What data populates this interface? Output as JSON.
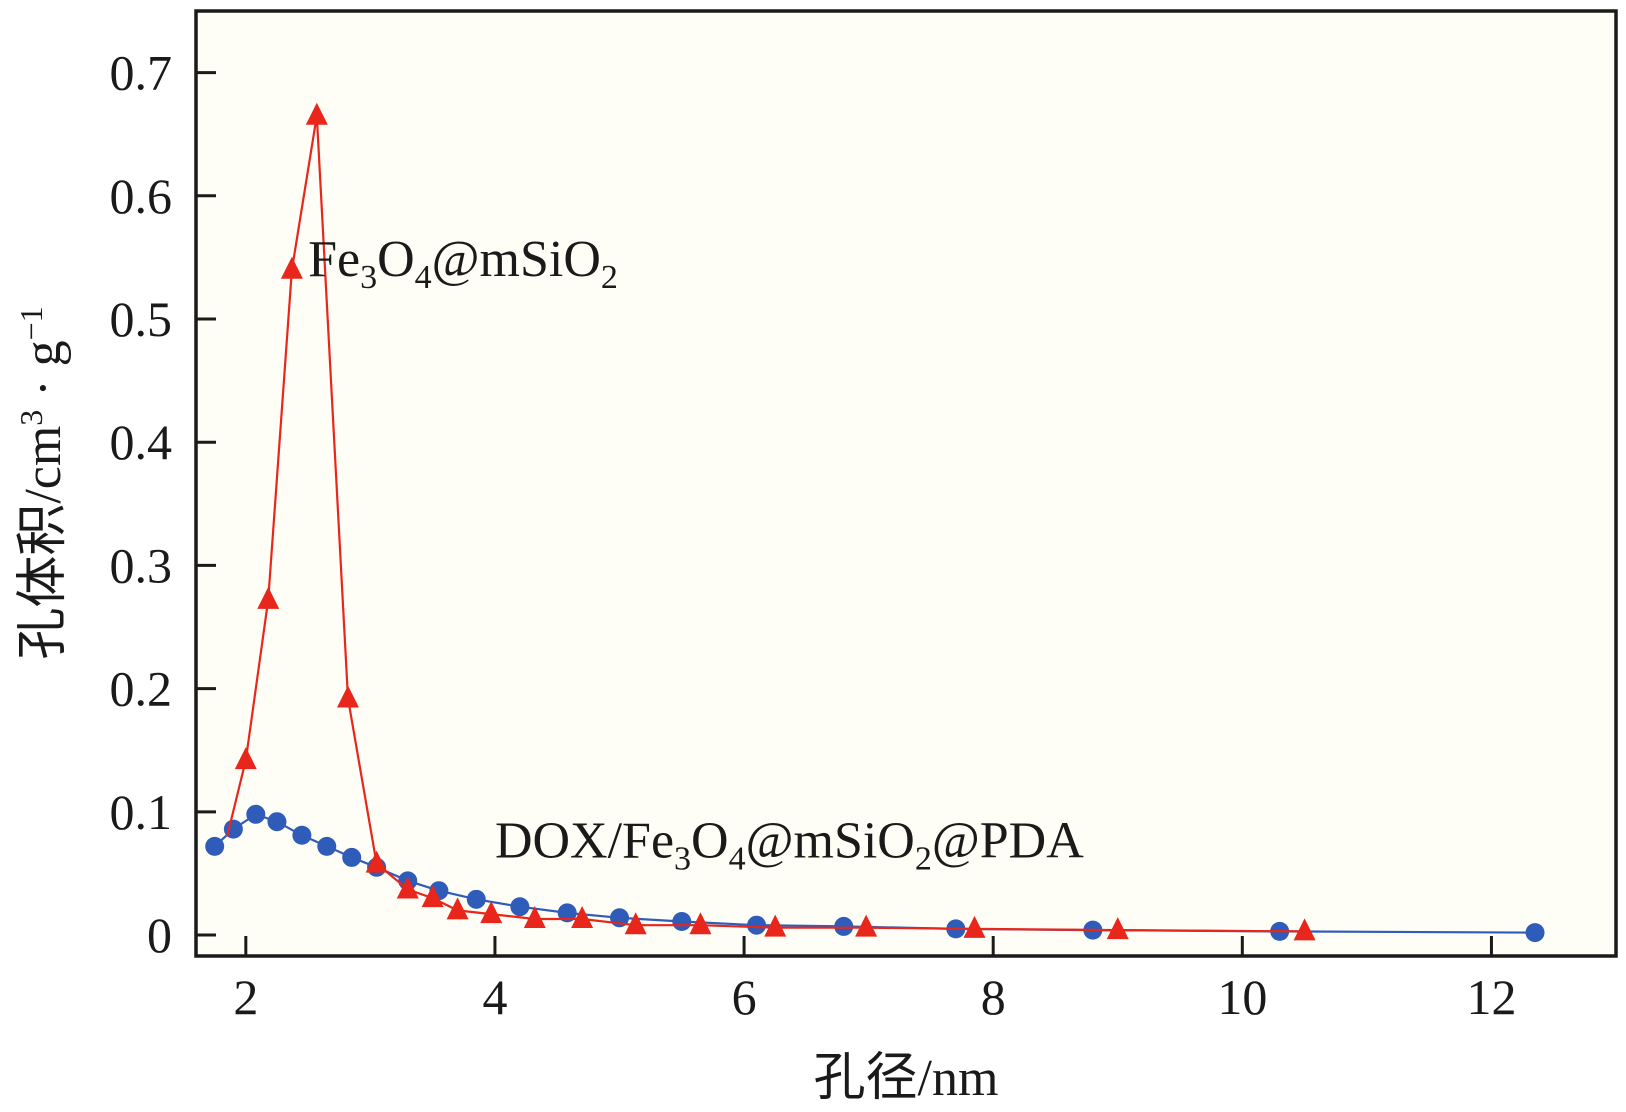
{
  "chart_data": {
    "type": "line",
    "title": "",
    "xlabel": "孔径/nm",
    "ylabel": {
      "main": "孔体积/cm",
      "sup": "3",
      "mid": " · g",
      "sup2": "−1"
    },
    "xlim": [
      1.6,
      13.0
    ],
    "ylim": [
      -0.017,
      0.75
    ],
    "xticks": [
      2,
      4,
      6,
      8,
      10,
      12
    ],
    "yticks": [
      0,
      0.1,
      0.2,
      0.3,
      0.4,
      0.5,
      0.6,
      0.7
    ],
    "xtick_labels": [
      "2",
      "4",
      "6",
      "8",
      "10",
      "12"
    ],
    "ytick_labels": [
      "0",
      "0.1",
      "0.2",
      "0.3",
      "0.4",
      "0.5",
      "0.6",
      "0.7"
    ],
    "grid": false,
    "series": [
      {
        "name": "Fe3O4@mSiO2",
        "color": "#e8261c",
        "marker": "triangle",
        "x": [
          1.85,
          2.0,
          2.18,
          2.37,
          2.57,
          2.82,
          3.05,
          3.3,
          3.5,
          3.7,
          3.97,
          4.32,
          4.7,
          5.13,
          5.65,
          6.25,
          6.98,
          7.85,
          9.0,
          10.5
        ],
        "y": [
          0.08,
          0.142,
          0.272,
          0.54,
          0.665,
          0.192,
          0.058,
          0.037,
          0.03,
          0.02,
          0.017,
          0.013,
          0.013,
          0.008,
          0.008,
          0.006,
          0.006,
          0.005,
          0.004,
          0.003
        ],
        "markers": [
          false,
          true,
          true,
          true,
          true,
          true,
          true,
          true,
          true,
          true,
          true,
          true,
          true,
          true,
          true,
          true,
          true,
          true,
          true,
          true
        ]
      },
      {
        "name": "DOX/Fe3O4@mSiO2@PDA",
        "color": "#2e5cb8",
        "marker": "circle",
        "x": [
          1.75,
          1.9,
          2.08,
          2.25,
          2.45,
          2.65,
          2.85,
          3.05,
          3.3,
          3.55,
          3.85,
          4.2,
          4.58,
          5.0,
          5.5,
          6.1,
          6.8,
          7.7,
          8.8,
          10.3,
          12.35
        ],
        "y": [
          0.072,
          0.086,
          0.098,
          0.092,
          0.081,
          0.072,
          0.063,
          0.055,
          0.044,
          0.036,
          0.029,
          0.023,
          0.018,
          0.014,
          0.011,
          0.008,
          0.007,
          0.005,
          0.004,
          0.003,
          0.002
        ]
      }
    ],
    "annotations": [
      {
        "id": "fe-label",
        "parts": [
          "Fe",
          "3",
          "O",
          "4",
          "@mSiO",
          "2"
        ],
        "at": [
          2.5,
          0.535
        ]
      },
      {
        "id": "dox-label",
        "parts": [
          "DOX/Fe",
          "3",
          "O",
          "4",
          "@mSiO",
          "2",
          "@PDA"
        ],
        "at": [
          4.0,
          0.063
        ]
      }
    ]
  }
}
